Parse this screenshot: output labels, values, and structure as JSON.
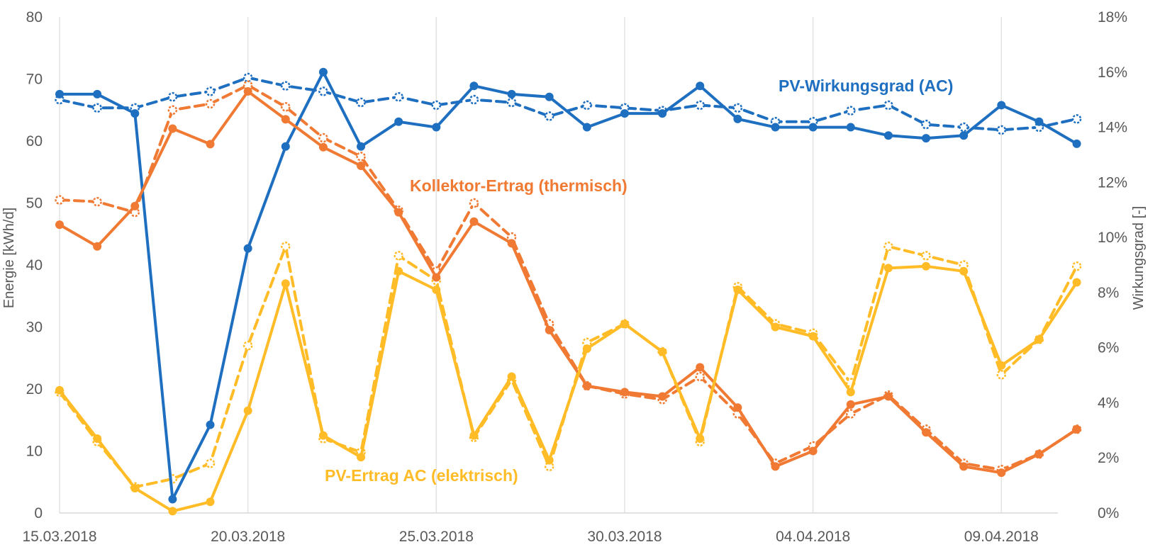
{
  "chart_data": {
    "type": "line",
    "x_start": "15.03.2018",
    "x_tick_labels": [
      "15.03.2018",
      "20.03.2018",
      "25.03.2018",
      "30.03.2018",
      "04.04.2018",
      "09.04.2018"
    ],
    "x_dates": [
      "15.03.2018",
      "16.03.2018",
      "17.03.2018",
      "18.03.2018",
      "19.03.2018",
      "20.03.2018",
      "21.03.2018",
      "22.03.2018",
      "23.03.2018",
      "24.03.2018",
      "25.03.2018",
      "26.03.2018",
      "27.03.2018",
      "28.03.2018",
      "29.03.2018",
      "30.03.2018",
      "31.03.2018",
      "01.04.2018",
      "02.04.2018",
      "03.04.2018",
      "04.04.2018",
      "05.04.2018",
      "06.04.2018",
      "07.04.2018",
      "08.04.2018",
      "09.04.2018",
      "10.04.2018",
      "11.04.2018"
    ],
    "ylabel": "Energie [kWh/d]",
    "ylim": [
      0,
      80
    ],
    "y_ticks": [
      "0",
      "10",
      "20",
      "30",
      "40",
      "50",
      "60",
      "70",
      "80"
    ],
    "y2label": "Wirkungsgrad [-]",
    "y2lim": [
      0,
      18
    ],
    "y2_ticks": [
      "0%",
      "2%",
      "4%",
      "6%",
      "8%",
      "10%",
      "12%",
      "14%",
      "16%",
      "18%"
    ],
    "grid": "vertical",
    "series": [
      {
        "name": "PV-Wirkungsgrad (AC)",
        "color": "#1f6fc1",
        "axis": "right",
        "style": "solid",
        "marker": "filled",
        "values": [
          15.2,
          15.2,
          14.5,
          0.5,
          3.2,
          9.6,
          13.3,
          16.0,
          13.3,
          14.2,
          14.0,
          15.5,
          15.2,
          15.1,
          14.0,
          14.5,
          14.5,
          15.5,
          14.3,
          14.0,
          14.0,
          14.0,
          13.7,
          13.6,
          13.7,
          14.8,
          14.2,
          13.4
        ]
      },
      {
        "name": "",
        "color": "#1f6fc1",
        "axis": "right",
        "style": "dashed",
        "marker": "open",
        "values": [
          15.0,
          14.7,
          14.7,
          15.1,
          15.3,
          15.8,
          15.5,
          15.3,
          14.9,
          15.1,
          14.8,
          15.0,
          14.9,
          14.4,
          14.8,
          14.7,
          14.6,
          14.8,
          14.7,
          14.2,
          14.2,
          14.6,
          14.8,
          14.1,
          14.0,
          13.9,
          14.0,
          14.3
        ]
      },
      {
        "name": "Kollektor-Ertrag (thermisch)",
        "color": "#f07a33",
        "axis": "left",
        "style": "solid",
        "marker": "filled",
        "values": [
          46.5,
          43,
          49.5,
          62,
          59.5,
          68,
          63.5,
          59,
          56,
          48.5,
          38,
          47,
          43.5,
          29.5,
          20.5,
          19.5,
          18.8,
          23.5,
          17,
          7.5,
          10,
          17.5,
          18.8,
          13,
          7.5,
          6.5,
          9.5,
          13.5
        ]
      },
      {
        "name": "",
        "color": "#f07a33",
        "axis": "left",
        "style": "dashed",
        "marker": "open",
        "values": [
          50.5,
          50.2,
          48.5,
          65,
          66,
          69,
          65.5,
          60.5,
          57.5,
          48.8,
          39,
          50,
          44.5,
          30.5,
          20.5,
          19.2,
          18.3,
          22,
          16,
          8,
          10.8,
          16,
          19,
          13.5,
          8,
          7,
          9.5,
          13.5
        ]
      },
      {
        "name": "PV-Ertrag AC (elektrisch)",
        "color": "#ffbc26",
        "axis": "left",
        "style": "solid",
        "marker": "filled",
        "values": [
          19.8,
          12,
          4,
          0.3,
          1.8,
          16.5,
          37,
          12.5,
          9,
          39,
          36,
          12.5,
          22,
          8.5,
          26.5,
          30.5,
          26,
          12,
          36,
          30,
          28.5,
          19.5,
          39.5,
          39.8,
          39,
          23.8,
          28,
          37.2
        ]
      },
      {
        "name": "",
        "color": "#ffbc26",
        "axis": "left",
        "style": "dashed",
        "marker": "open",
        "values": [
          19.5,
          11.5,
          4.2,
          5.5,
          8,
          27,
          43,
          12,
          9.8,
          41.5,
          37.5,
          12.2,
          21.5,
          7.5,
          27.5,
          30.5,
          26,
          11.5,
          36.5,
          30.5,
          29,
          21,
          43,
          41.5,
          40,
          22.3,
          28,
          39.8
        ]
      }
    ]
  }
}
